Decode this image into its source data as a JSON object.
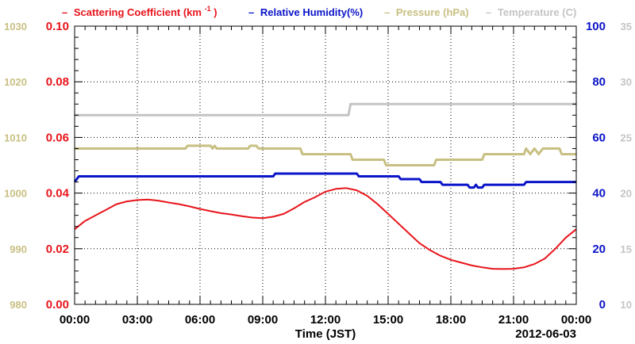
{
  "legend": {
    "scattering": {
      "dash": "–",
      "prefix": "Scattering Coefficient (km",
      "sup": "-1",
      "suffix": ")"
    },
    "humidity": {
      "dash": "–",
      "label": "Relative Humidity(%)"
    },
    "pressure": {
      "dash": "–",
      "label": "Pressure (hPa)"
    },
    "temperature": {
      "dash": "–",
      "label": "Temperature (C)"
    }
  },
  "xaxis": {
    "title": "Time (JST)",
    "date": "2012-06-03",
    "ticks": [
      "00:00",
      "03:00",
      "06:00",
      "09:00",
      "12:00",
      "15:00",
      "18:00",
      "21:00",
      "00:00"
    ]
  },
  "colors": {
    "scattering": "#e8141b",
    "humidity": "#0b14c8",
    "pressure": "#c8bf82",
    "temperature": "#c4c4c4",
    "grid": "#000000"
  },
  "chart_data": {
    "type": "line",
    "x_unit": "hours since 00:00 JST, 2012-06-03",
    "xlim": [
      0,
      24
    ],
    "axes": {
      "pressure": {
        "side": "left-outer",
        "range": [
          980,
          1030
        ],
        "ticks": [
          "980",
          "990",
          "1000",
          "1010",
          "1020",
          "1030"
        ]
      },
      "scattering": {
        "side": "left-inner",
        "range": [
          0,
          0.1
        ],
        "ticks": [
          "0.00",
          "0.02",
          "0.04",
          "0.06",
          "0.08",
          "0.10"
        ]
      },
      "humidity": {
        "side": "right-inner",
        "range": [
          0,
          100
        ],
        "ticks": [
          "0",
          "20",
          "40",
          "60",
          "80",
          "100"
        ]
      },
      "temperature": {
        "side": "right-outer",
        "range": [
          10,
          35
        ],
        "ticks": [
          "10",
          "15",
          "20",
          "25",
          "30",
          "35"
        ]
      }
    },
    "series": [
      {
        "name": "Scattering Coefficient (km-1)",
        "key": "scattering",
        "axis": "scattering",
        "points": [
          [
            0,
            0.027
          ],
          [
            0.5,
            0.03
          ],
          [
            1,
            0.032
          ],
          [
            1.5,
            0.034
          ],
          [
            2,
            0.036
          ],
          [
            2.5,
            0.037
          ],
          [
            3,
            0.0375
          ],
          [
            3.5,
            0.0377
          ],
          [
            4,
            0.0373
          ],
          [
            4.5,
            0.0366
          ],
          [
            5,
            0.036
          ],
          [
            5.5,
            0.0352
          ],
          [
            6,
            0.0343
          ],
          [
            6.5,
            0.0335
          ],
          [
            7,
            0.0328
          ],
          [
            7.5,
            0.0323
          ],
          [
            8,
            0.0317
          ],
          [
            8.5,
            0.0312
          ],
          [
            9,
            0.031
          ],
          [
            9.5,
            0.0315
          ],
          [
            10,
            0.0325
          ],
          [
            10.5,
            0.0345
          ],
          [
            11,
            0.0368
          ],
          [
            11.5,
            0.0385
          ],
          [
            12,
            0.0405
          ],
          [
            12.5,
            0.0415
          ],
          [
            13,
            0.0418
          ],
          [
            13.5,
            0.041
          ],
          [
            14,
            0.039
          ],
          [
            14.5,
            0.036
          ],
          [
            15,
            0.0325
          ],
          [
            15.5,
            0.029
          ],
          [
            16,
            0.0255
          ],
          [
            16.5,
            0.022
          ],
          [
            17,
            0.0195
          ],
          [
            17.5,
            0.0175
          ],
          [
            18,
            0.016
          ],
          [
            18.5,
            0.015
          ],
          [
            19,
            0.014
          ],
          [
            19.5,
            0.0133
          ],
          [
            20,
            0.0128
          ],
          [
            20.5,
            0.0127
          ],
          [
            21,
            0.0128
          ],
          [
            21.5,
            0.0133
          ],
          [
            22,
            0.0145
          ],
          [
            22.5,
            0.0165
          ],
          [
            23,
            0.02
          ],
          [
            23.5,
            0.024
          ],
          [
            24,
            0.027
          ]
        ]
      },
      {
        "name": "Relative Humidity(%)",
        "key": "humidity",
        "axis": "humidity",
        "points": [
          [
            0,
            44
          ],
          [
            0.2,
            46
          ],
          [
            9.5,
            46
          ],
          [
            9.6,
            47
          ],
          [
            13.5,
            47
          ],
          [
            13.6,
            46
          ],
          [
            15.5,
            46
          ],
          [
            15.6,
            45
          ],
          [
            16.5,
            45
          ],
          [
            16.6,
            44
          ],
          [
            17.5,
            44
          ],
          [
            17.6,
            43
          ],
          [
            18.8,
            43
          ],
          [
            18.9,
            42
          ],
          [
            19.1,
            42
          ],
          [
            19.2,
            43
          ],
          [
            19.3,
            42
          ],
          [
            19.5,
            42
          ],
          [
            19.6,
            43
          ],
          [
            21.5,
            43
          ],
          [
            21.6,
            44
          ],
          [
            24,
            44
          ]
        ]
      },
      {
        "name": "Pressure (hPa)",
        "key": "pressure",
        "axis": "pressure",
        "points": [
          [
            0,
            1008
          ],
          [
            5.3,
            1008
          ],
          [
            5.4,
            1008.5
          ],
          [
            6.5,
            1008.5
          ],
          [
            6.6,
            1008
          ],
          [
            6.7,
            1008.5
          ],
          [
            6.8,
            1008
          ],
          [
            8.3,
            1008
          ],
          [
            8.4,
            1008.5
          ],
          [
            8.7,
            1008.5
          ],
          [
            8.8,
            1008
          ],
          [
            10.8,
            1008
          ],
          [
            10.9,
            1007
          ],
          [
            13.2,
            1007
          ],
          [
            13.3,
            1006
          ],
          [
            14.8,
            1006
          ],
          [
            14.9,
            1005
          ],
          [
            17.2,
            1005
          ],
          [
            17.3,
            1006
          ],
          [
            19.5,
            1006
          ],
          [
            19.6,
            1007
          ],
          [
            21.5,
            1007
          ],
          [
            21.6,
            1008
          ],
          [
            21.8,
            1007
          ],
          [
            22.0,
            1008
          ],
          [
            22.2,
            1007
          ],
          [
            22.4,
            1008
          ],
          [
            23.2,
            1008
          ],
          [
            23.3,
            1007
          ],
          [
            24,
            1007
          ]
        ]
      },
      {
        "name": "Temperature (C)",
        "key": "temperature",
        "axis": "temperature",
        "points": [
          [
            0,
            27
          ],
          [
            13.1,
            27
          ],
          [
            13.2,
            28
          ],
          [
            24,
            28
          ]
        ]
      }
    ]
  }
}
